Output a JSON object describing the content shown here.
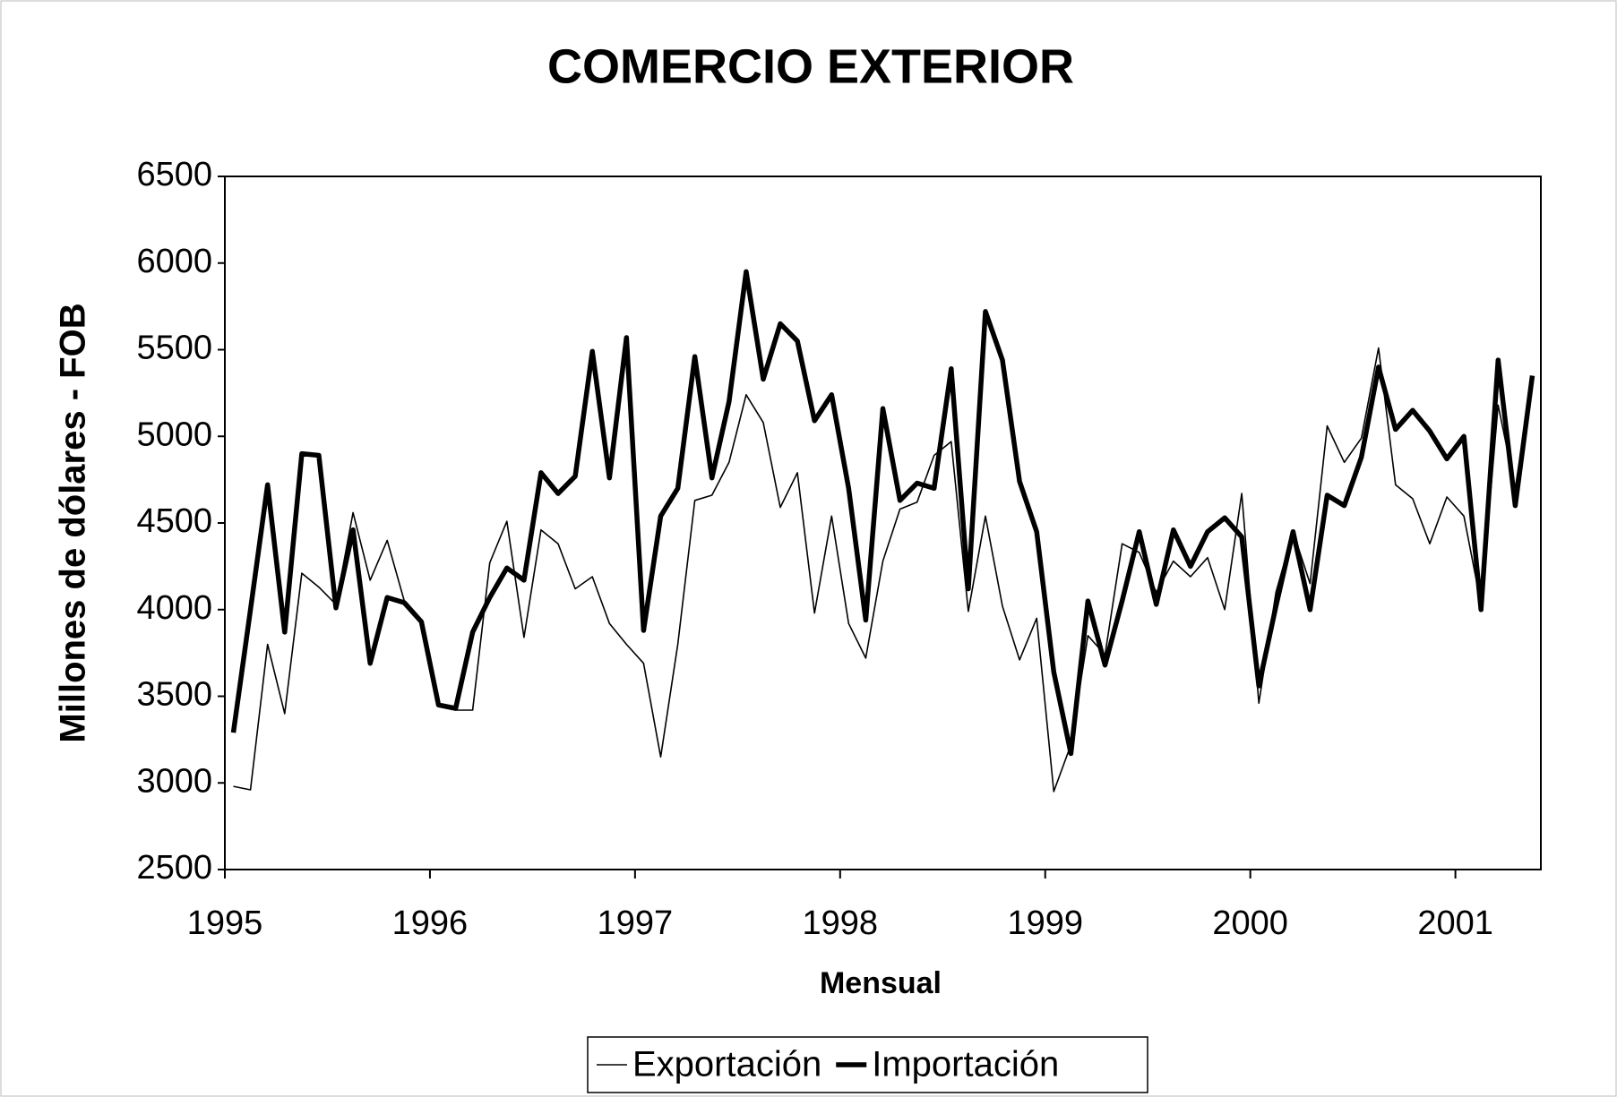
{
  "chart_data": {
    "type": "line",
    "title": "COMERCIO EXTERIOR",
    "x_label": "Mensual",
    "y_label": "Millones de dólares - FOB",
    "categories": [
      "1995",
      null,
      null,
      null,
      null,
      null,
      null,
      null,
      null,
      null,
      null,
      null,
      "1996",
      null,
      null,
      null,
      null,
      null,
      null,
      null,
      null,
      null,
      null,
      null,
      "1997",
      null,
      null,
      null,
      null,
      null,
      null,
      null,
      null,
      null,
      null,
      null,
      "1998",
      null,
      null,
      null,
      null,
      null,
      null,
      null,
      null,
      null,
      null,
      null,
      "1999",
      null,
      null,
      null,
      null,
      null,
      null,
      null,
      null,
      null,
      null,
      null,
      "2000",
      null,
      null,
      null,
      null,
      null,
      null,
      null,
      null,
      null,
      null,
      null,
      "2001",
      null,
      null,
      null,
      null
    ],
    "series": [
      {
        "name": "Exportación",
        "color": "#000000",
        "line_width": 1.6,
        "values": [
          2980,
          2960,
          3800,
          3400,
          4210,
          4130,
          4030,
          4560,
          4170,
          4400,
          4050,
          3920,
          3440,
          3420,
          3420,
          4270,
          4510,
          3840,
          4460,
          4380,
          4120,
          4190,
          3920,
          3800,
          3690,
          3150,
          3800,
          4630,
          4660,
          4850,
          5240,
          5080,
          4590,
          4790,
          3980,
          4540,
          3920,
          3720,
          4280,
          4580,
          4620,
          4890,
          4970,
          3990,
          4540,
          4020,
          3710,
          3950,
          2950,
          3220,
          3850,
          3740,
          4380,
          4330,
          4100,
          4280,
          4190,
          4300,
          4000,
          4670,
          3460,
          4100,
          4450,
          4150,
          5060,
          4850,
          4990,
          5510,
          4720,
          4640,
          4380,
          4650,
          4540,
          4030,
          5180,
          4700,
          5340
        ]
      },
      {
        "name": "Importación",
        "color": "#000000",
        "line_width": 5.5,
        "values": [
          3290,
          4000,
          4720,
          3870,
          4900,
          4890,
          4010,
          4460,
          3690,
          4070,
          4040,
          3930,
          3450,
          3430,
          3870,
          4070,
          4240,
          4170,
          4790,
          4670,
          4770,
          5490,
          4760,
          5570,
          3880,
          4540,
          4700,
          5460,
          4760,
          5200,
          5950,
          5330,
          5650,
          5550,
          5090,
          5240,
          4700,
          3940,
          5160,
          4630,
          4730,
          4700,
          5390,
          4120,
          5720,
          5440,
          4740,
          4450,
          3640,
          3170,
          4050,
          3680,
          4050,
          4450,
          4030,
          4460,
          4250,
          4450,
          4530,
          4420,
          3560,
          4020,
          4450,
          4000,
          4660,
          4600,
          4880,
          5400,
          5040,
          5150,
          5030,
          4870,
          5000,
          4000,
          5440,
          4600,
          5350
        ]
      }
    ],
    "ylim": [
      2500,
      6500
    ],
    "yticks": [
      2500,
      3000,
      3500,
      4000,
      4500,
      5000,
      5500,
      6000,
      6500
    ],
    "grid": false,
    "legend": "bottom"
  }
}
